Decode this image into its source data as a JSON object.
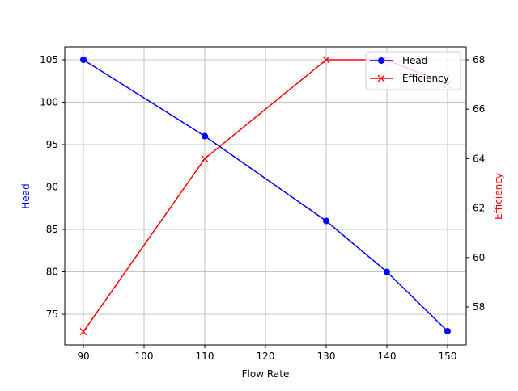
{
  "chart_data": {
    "type": "line",
    "title": "",
    "xlabel": "Flow Rate",
    "ylabel": "Head",
    "y2label": "Efficiency",
    "x": [
      90,
      110,
      130,
      140,
      150
    ],
    "xticks": [
      90,
      100,
      110,
      120,
      130,
      140,
      150
    ],
    "yticks": [
      75,
      80,
      85,
      90,
      95,
      100,
      105
    ],
    "y2ticks": [
      58,
      60,
      62,
      64,
      66,
      68
    ],
    "xlim": [
      87,
      153
    ],
    "ylim": [
      71.4,
      106.5
    ],
    "y2lim": [
      56.5,
      68.5
    ],
    "grid": true,
    "legend_position": "upper right",
    "series": [
      {
        "name": "Head",
        "axis": "left",
        "color": "#0000ff",
        "marker": "o",
        "values": [
          105,
          96,
          86,
          80,
          73
        ]
      },
      {
        "name": "Efficiency",
        "axis": "right",
        "color": "#ff0000",
        "marker": "x",
        "values": [
          57,
          64,
          68,
          68,
          67
        ]
      }
    ]
  }
}
